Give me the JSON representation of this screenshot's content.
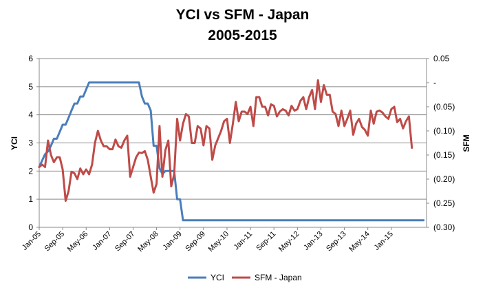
{
  "chart_data": {
    "type": "line",
    "title": "YCI vs SFM - Japan",
    "subtitle": "2005-2015",
    "y_left": {
      "label": "YCI",
      "min": 0,
      "max": 6,
      "ticks": [
        "0",
        "1",
        "2",
        "3",
        "4",
        "5",
        "6"
      ]
    },
    "y_right": {
      "label": "SFM",
      "min": -0.3,
      "max": 0.05,
      "ticks": [
        {
          "v": 0.05,
          "label": "0.05"
        },
        {
          "v": 0.0,
          "label": "-"
        },
        {
          "v": -0.05,
          "label": "(0.05)"
        },
        {
          "v": -0.1,
          "label": "(0.10)"
        },
        {
          "v": -0.15,
          "label": "(0.15)"
        },
        {
          "v": -0.2,
          "label": "(0.20)"
        },
        {
          "v": -0.25,
          "label": "(0.25)"
        },
        {
          "v": -0.3,
          "label": "(0.30)"
        }
      ]
    },
    "x_axis": {
      "start": "Jan-05",
      "months": 132,
      "tick_labels": [
        "Jan-05",
        "Sep-05",
        "May-06",
        "Jan-07",
        "Sep-07",
        "May-08",
        "Jan-09",
        "Sep-09",
        "May-10",
        "Jan-11",
        "Sep-11",
        "May-12",
        "Jan-13",
        "Sep-13",
        "May-14",
        "Jan-15"
      ],
      "tick_month_index": [
        0,
        8,
        16,
        24,
        32,
        40,
        48,
        56,
        64,
        72,
        80,
        88,
        96,
        104,
        112,
        120
      ]
    },
    "grid": true,
    "legend_position": "bottom",
    "series": [
      {
        "name": "YCI",
        "axis": "left",
        "color": "#4a7ebb",
        "points": [
          [
            0,
            2.15
          ],
          [
            2,
            2.6
          ],
          [
            3,
            2.7
          ],
          [
            4,
            2.9
          ],
          [
            5,
            3.15
          ],
          [
            6,
            3.15
          ],
          [
            7,
            3.4
          ],
          [
            8,
            3.65
          ],
          [
            9,
            3.65
          ],
          [
            10,
            3.9
          ],
          [
            11,
            4.15
          ],
          [
            12,
            4.4
          ],
          [
            13,
            4.4
          ],
          [
            14,
            4.65
          ],
          [
            15,
            4.65
          ],
          [
            16,
            4.9
          ],
          [
            17,
            5.15
          ],
          [
            34,
            5.15
          ],
          [
            35,
            4.65
          ],
          [
            36,
            4.4
          ],
          [
            37,
            4.4
          ],
          [
            38,
            4.15
          ],
          [
            39,
            2.9
          ],
          [
            40,
            2.9
          ],
          [
            41,
            2.1
          ],
          [
            42,
            1.9
          ],
          [
            43,
            2.0
          ],
          [
            46,
            2.0
          ],
          [
            47,
            1.0
          ],
          [
            48,
            1.0
          ],
          [
            49,
            0.25
          ],
          [
            131,
            0.25
          ]
        ]
      },
      {
        "name": "SFM - Japan",
        "axis": "right",
        "color": "#be4b48",
        "points": [
          [
            0,
            -0.175
          ],
          [
            1,
            -0.17
          ],
          [
            2,
            -0.175
          ],
          [
            3,
            -0.12
          ],
          [
            4,
            -0.15
          ],
          [
            5,
            -0.165
          ],
          [
            6,
            -0.155
          ],
          [
            7,
            -0.155
          ],
          [
            8,
            -0.18
          ],
          [
            9,
            -0.245
          ],
          [
            10,
            -0.225
          ],
          [
            11,
            -0.185
          ],
          [
            12,
            -0.188
          ],
          [
            13,
            -0.2
          ],
          [
            14,
            -0.178
          ],
          [
            15,
            -0.19
          ],
          [
            16,
            -0.18
          ],
          [
            17,
            -0.19
          ],
          [
            18,
            -0.17
          ],
          [
            19,
            -0.125
          ],
          [
            20,
            -0.1
          ],
          [
            21,
            -0.12
          ],
          [
            22,
            -0.132
          ],
          [
            23,
            -0.132
          ],
          [
            24,
            -0.138
          ],
          [
            25,
            -0.138
          ],
          [
            26,
            -0.118
          ],
          [
            27,
            -0.132
          ],
          [
            28,
            -0.135
          ],
          [
            29,
            -0.12
          ],
          [
            30,
            -0.11
          ],
          [
            31,
            -0.195
          ],
          [
            32,
            -0.175
          ],
          [
            33,
            -0.155
          ],
          [
            34,
            -0.145
          ],
          [
            35,
            -0.146
          ],
          [
            36,
            -0.142
          ],
          [
            37,
            -0.16
          ],
          [
            38,
            -0.195
          ],
          [
            39,
            -0.228
          ],
          [
            40,
            -0.21
          ],
          [
            41,
            -0.09
          ],
          [
            42,
            -0.195
          ],
          [
            43,
            -0.14
          ],
          [
            44,
            -0.12
          ],
          [
            45,
            -0.215
          ],
          [
            46,
            -0.19
          ],
          [
            47,
            -0.075
          ],
          [
            48,
            -0.12
          ],
          [
            49,
            -0.085
          ],
          [
            50,
            -0.065
          ],
          [
            51,
            -0.07
          ],
          [
            52,
            -0.125
          ],
          [
            53,
            -0.125
          ],
          [
            54,
            -0.09
          ],
          [
            55,
            -0.095
          ],
          [
            56,
            -0.13
          ],
          [
            57,
            -0.09
          ],
          [
            58,
            -0.095
          ],
          [
            59,
            -0.16
          ],
          [
            60,
            -0.13
          ],
          [
            61,
            -0.115
          ],
          [
            62,
            -0.1
          ],
          [
            63,
            -0.08
          ],
          [
            64,
            -0.075
          ],
          [
            65,
            -0.125
          ],
          [
            66,
            -0.085
          ],
          [
            67,
            -0.04
          ],
          [
            68,
            -0.08
          ],
          [
            69,
            -0.06
          ],
          [
            70,
            -0.06
          ],
          [
            71,
            -0.065
          ],
          [
            72,
            -0.05
          ],
          [
            73,
            -0.09
          ],
          [
            74,
            -0.03
          ],
          [
            75,
            -0.03
          ],
          [
            76,
            -0.05
          ],
          [
            77,
            -0.05
          ],
          [
            78,
            -0.068
          ],
          [
            79,
            -0.045
          ],
          [
            80,
            -0.048
          ],
          [
            81,
            -0.07
          ],
          [
            82,
            -0.06
          ],
          [
            83,
            -0.055
          ],
          [
            84,
            -0.058
          ],
          [
            85,
            -0.068
          ],
          [
            86,
            -0.048
          ],
          [
            87,
            -0.058
          ],
          [
            88,
            -0.055
          ],
          [
            89,
            -0.038
          ],
          [
            90,
            -0.03
          ],
          [
            91,
            -0.055
          ],
          [
            92,
            -0.03
          ],
          [
            93,
            -0.015
          ],
          [
            94,
            -0.055
          ],
          [
            95,
            0.005
          ],
          [
            96,
            -0.04
          ],
          [
            97,
            -0.005
          ],
          [
            98,
            -0.025
          ],
          [
            99,
            -0.025
          ],
          [
            100,
            -0.06
          ],
          [
            101,
            -0.065
          ],
          [
            102,
            -0.09
          ],
          [
            103,
            -0.058
          ],
          [
            104,
            -0.09
          ],
          [
            105,
            -0.075
          ],
          [
            106,
            -0.058
          ],
          [
            107,
            -0.108
          ],
          [
            108,
            -0.085
          ],
          [
            109,
            -0.075
          ],
          [
            110,
            -0.092
          ],
          [
            111,
            -0.098
          ],
          [
            112,
            -0.11
          ],
          [
            113,
            -0.058
          ],
          [
            114,
            -0.085
          ],
          [
            115,
            -0.06
          ],
          [
            116,
            -0.058
          ],
          [
            117,
            -0.062
          ],
          [
            118,
            -0.07
          ],
          [
            119,
            -0.075
          ],
          [
            120,
            -0.055
          ],
          [
            121,
            -0.05
          ],
          [
            122,
            -0.082
          ],
          [
            123,
            -0.075
          ],
          [
            124,
            -0.095
          ],
          [
            125,
            -0.08
          ],
          [
            126,
            -0.07
          ],
          [
            127,
            -0.135
          ]
        ]
      }
    ]
  }
}
